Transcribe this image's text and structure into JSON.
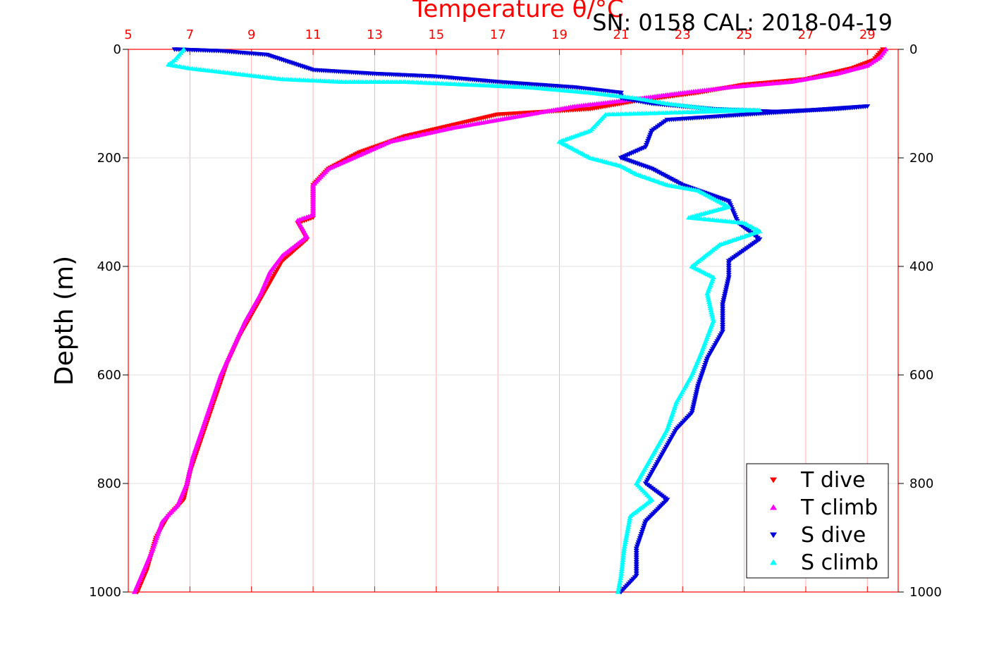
{
  "chart_data": {
    "type": "scatter",
    "title": "Temperature θ/°C",
    "subtitle": "SN: 0158  CAL: 2018-04-19",
    "ylabel": "Depth (m)",
    "x_axis_position": "top",
    "xlim": [
      5,
      30
    ],
    "x_ticks": [
      "5",
      "7",
      "9",
      "11",
      "13",
      "15",
      "17",
      "19",
      "21",
      "23",
      "25",
      "27",
      "29"
    ],
    "ylim": [
      0,
      1000
    ],
    "y_reversed": true,
    "y_ticks": [
      "0",
      "200",
      "400",
      "600",
      "800",
      "1000"
    ],
    "grid": true,
    "legend_position": "bottom-right",
    "colors": {
      "t_dive": "#ff0000",
      "t_climb": "#ff00ff",
      "s_dive": "#0000dd",
      "s_climb": "#00ffff",
      "axis": "#ff0000",
      "grid": "#ffb0b0"
    },
    "series": [
      {
        "name": "T dive",
        "marker": "triangle-down",
        "points": [
          [
            29.5,
            0
          ],
          [
            29.2,
            20
          ],
          [
            28.5,
            35
          ],
          [
            27,
            55
          ],
          [
            25,
            65
          ],
          [
            23.5,
            80
          ],
          [
            21.5,
            95
          ],
          [
            20,
            110
          ],
          [
            17,
            120
          ],
          [
            15.5,
            140
          ],
          [
            14,
            160
          ],
          [
            12.5,
            190
          ],
          [
            11.5,
            220
          ],
          [
            11,
            250
          ],
          [
            11,
            310
          ],
          [
            10.5,
            320
          ],
          [
            10.8,
            350
          ],
          [
            10,
            390
          ],
          [
            9.8,
            410
          ],
          [
            9.5,
            440
          ],
          [
            9,
            490
          ],
          [
            8.6,
            530
          ],
          [
            8.2,
            580
          ],
          [
            7.9,
            630
          ],
          [
            7.6,
            680
          ],
          [
            7.3,
            730
          ],
          [
            7,
            780
          ],
          [
            6.8,
            830
          ],
          [
            6.3,
            860
          ],
          [
            5.9,
            900
          ],
          [
            5.6,
            960
          ],
          [
            5.3,
            1000
          ]
        ]
      },
      {
        "name": "T climb",
        "marker": "triangle-up",
        "points": [
          [
            29.6,
            0
          ],
          [
            29.4,
            15
          ],
          [
            29,
            30
          ],
          [
            28,
            45
          ],
          [
            26.5,
            60
          ],
          [
            24.5,
            70
          ],
          [
            23,
            80
          ],
          [
            21,
            95
          ],
          [
            19.5,
            105
          ],
          [
            17.5,
            125
          ],
          [
            15.5,
            145
          ],
          [
            13.5,
            170
          ],
          [
            12.5,
            195
          ],
          [
            11.5,
            220
          ],
          [
            11,
            250
          ],
          [
            11,
            305
          ],
          [
            10.5,
            315
          ],
          [
            10.8,
            345
          ],
          [
            10,
            380
          ],
          [
            9.6,
            410
          ],
          [
            9.3,
            450
          ],
          [
            8.8,
            500
          ],
          [
            8.4,
            550
          ],
          [
            8,
            600
          ],
          [
            7.7,
            650
          ],
          [
            7.4,
            700
          ],
          [
            7.1,
            750
          ],
          [
            6.9,
            800
          ],
          [
            6.6,
            840
          ],
          [
            6.1,
            870
          ],
          [
            5.8,
            920
          ],
          [
            5.5,
            960
          ],
          [
            5.2,
            1000
          ]
        ]
      },
      {
        "name": "S dive",
        "marker": "triangle-down",
        "points": [
          [
            6.5,
            0
          ],
          [
            8,
            3
          ],
          [
            9.5,
            10
          ],
          [
            11,
            38
          ],
          [
            13,
            45
          ],
          [
            15,
            50
          ],
          [
            17,
            60
          ],
          [
            19.5,
            70
          ],
          [
            21,
            80
          ],
          [
            21,
            90
          ],
          [
            22,
            100
          ],
          [
            24,
            110
          ],
          [
            26,
            115
          ],
          [
            28,
            110
          ],
          [
            29,
            105
          ],
          [
            22.5,
            130
          ],
          [
            22,
            150
          ],
          [
            21.8,
            180
          ],
          [
            21,
            200
          ],
          [
            22,
            220
          ],
          [
            23,
            250
          ],
          [
            24.5,
            280
          ],
          [
            24.8,
            320
          ],
          [
            25.5,
            350
          ],
          [
            24.5,
            390
          ],
          [
            24.5,
            420
          ],
          [
            24.3,
            470
          ],
          [
            24.3,
            520
          ],
          [
            23.8,
            570
          ],
          [
            23.5,
            620
          ],
          [
            23.3,
            670
          ],
          [
            22.8,
            700
          ],
          [
            22.3,
            750
          ],
          [
            21.8,
            800
          ],
          [
            22.5,
            830
          ],
          [
            21.8,
            870
          ],
          [
            21.5,
            920
          ],
          [
            21.5,
            970
          ],
          [
            21,
            1000
          ]
        ]
      },
      {
        "name": "S climb",
        "marker": "triangle-up",
        "points": [
          [
            6.8,
            0
          ],
          [
            6.5,
            20
          ],
          [
            6.3,
            28
          ],
          [
            7,
            35
          ],
          [
            8.5,
            45
          ],
          [
            10,
            55
          ],
          [
            12,
            60
          ],
          [
            14,
            60
          ],
          [
            16,
            65
          ],
          [
            18,
            70
          ],
          [
            20,
            80
          ],
          [
            21.5,
            90
          ],
          [
            22.5,
            100
          ],
          [
            24,
            110
          ],
          [
            25.5,
            112
          ],
          [
            20.5,
            120
          ],
          [
            20,
            150
          ],
          [
            19,
            170
          ],
          [
            20,
            200
          ],
          [
            21,
            215
          ],
          [
            21.5,
            230
          ],
          [
            22.5,
            250
          ],
          [
            23.5,
            260
          ],
          [
            24.5,
            290
          ],
          [
            23.2,
            310
          ],
          [
            25,
            320
          ],
          [
            25.5,
            335
          ],
          [
            24.2,
            360
          ],
          [
            23.3,
            400
          ],
          [
            24,
            420
          ],
          [
            23.8,
            450
          ],
          [
            24,
            500
          ],
          [
            23.6,
            560
          ],
          [
            23.3,
            600
          ],
          [
            22.8,
            650
          ],
          [
            22.5,
            700
          ],
          [
            22,
            750
          ],
          [
            21.5,
            800
          ],
          [
            22,
            830
          ],
          [
            21.3,
            860
          ],
          [
            21.1,
            920
          ],
          [
            21,
            970
          ],
          [
            20.9,
            1000
          ]
        ]
      }
    ]
  }
}
